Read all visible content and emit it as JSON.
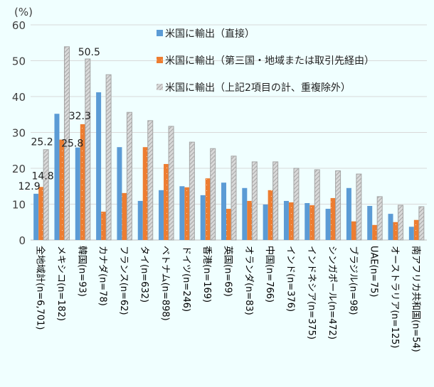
{
  "chart_data": {
    "type": "bar",
    "unit_label": "(%)",
    "ylim": [
      0,
      60
    ],
    "yticks": [
      0,
      10,
      20,
      30,
      40,
      50,
      60
    ],
    "grid": true,
    "legend_placement": "top-right",
    "categories": [
      "全地域計(n=6,701)",
      "メキシコ(n=182)",
      "韓国(n=93)",
      "カナダ(n=78)",
      "フランス(n=62)",
      "タイ(n=632)",
      "ベトナム(n=898)",
      "ドイツ(n=246)",
      "香港(n=169)",
      "英国(n=69)",
      "オランダ(n=83)",
      "中国(n=766)",
      "インド(n=376)",
      "インドネシア(n=375)",
      "シンガポール(n=472)",
      "ブラジル(n=98)",
      "UAE(n=75)",
      "オーストラリア(n=125)",
      "南アフリカ共和国(n=54)"
    ],
    "series": [
      {
        "name": "米国に輸出（直接）",
        "color": "#5b9bd5",
        "values": [
          12.9,
          35.2,
          25.8,
          41.2,
          25.9,
          10.9,
          13.9,
          15.0,
          12.5,
          16.0,
          14.5,
          9.9,
          10.9,
          10.3,
          8.7,
          14.5,
          9.5,
          7.3,
          3.7
        ]
      },
      {
        "name": "米国に輸出（第三国・地域または取引先経由）",
        "color": "#ed7d31",
        "values": [
          14.8,
          28.0,
          32.3,
          7.9,
          13.1,
          25.9,
          21.2,
          14.7,
          17.2,
          8.7,
          10.9,
          13.9,
          10.5,
          9.7,
          11.7,
          5.2,
          4.2,
          5.0,
          5.6
        ]
      },
      {
        "name": "米国に輸出（上記2項目の計、重複除外）",
        "color": "#a5a5a5",
        "values": [
          25.2,
          53.9,
          50.5,
          46.1,
          35.6,
          33.3,
          31.7,
          27.3,
          25.5,
          23.4,
          21.8,
          21.8,
          20.0,
          19.6,
          19.3,
          18.4,
          12.1,
          9.7,
          9.3
        ]
      }
    ],
    "data_labels": [
      {
        "category": 0,
        "series": 0,
        "text": "12.9"
      },
      {
        "category": 0,
        "series": 1,
        "text": "14.8"
      },
      {
        "category": 0,
        "series": 2,
        "text": "25.2"
      },
      {
        "category": 2,
        "series": 0,
        "text": "25.8"
      },
      {
        "category": 2,
        "series": 1,
        "text": "32.3"
      },
      {
        "category": 2,
        "series": 2,
        "text": "50.5"
      }
    ]
  }
}
